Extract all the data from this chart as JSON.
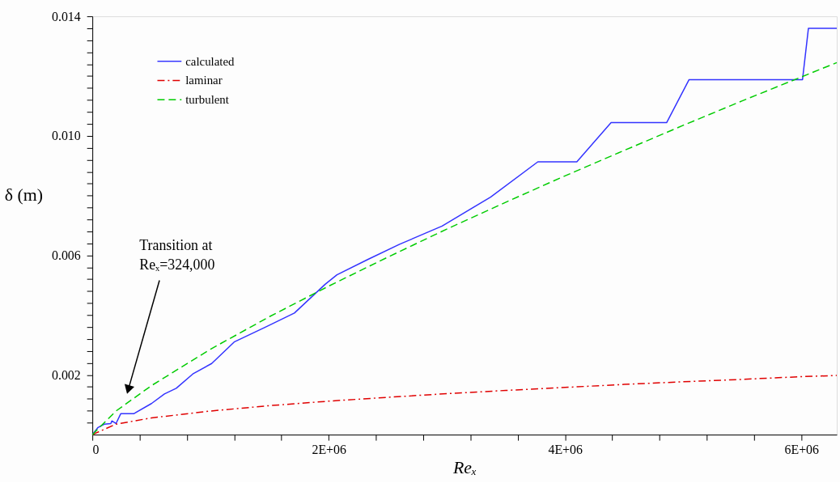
{
  "chart_data": {
    "type": "line",
    "xlabel": "Reₓ",
    "ylabel": "δ (m)",
    "xlim": [
      0,
      6300000
    ],
    "ylim": [
      0,
      0.014
    ],
    "xticks": [
      0,
      {
        "value": 400000,
        "label": null
      },
      {
        "value": 800000,
        "label": null
      },
      {
        "value": 1200000,
        "label": null
      },
      {
        "value": 1600000,
        "label": null
      },
      {
        "value": 2000000,
        "label": "2E+06"
      },
      {
        "value": 2400000,
        "label": null
      },
      {
        "value": 2800000,
        "label": null
      },
      {
        "value": 3200000,
        "label": null
      },
      {
        "value": 3600000,
        "label": null
      },
      {
        "value": 4000000,
        "label": "4E+06"
      },
      {
        "value": 4400000,
        "label": null
      },
      {
        "value": 4800000,
        "label": null
      },
      {
        "value": 5200000,
        "label": null
      },
      {
        "value": 5600000,
        "label": null
      },
      {
        "value": 6000000,
        "label": "6E+06"
      }
    ],
    "yticks": [
      {
        "value": 0.0004,
        "label": null
      },
      {
        "value": 0.0008,
        "label": null
      },
      {
        "value": 0.0012,
        "label": null
      },
      {
        "value": 0.0016,
        "label": null
      },
      0.002,
      {
        "value": 0.0024,
        "label": null
      },
      {
        "value": 0.0028,
        "label": null
      },
      {
        "value": 0.0032,
        "label": null
      },
      {
        "value": 0.0036,
        "label": null
      },
      {
        "value": 0.004,
        "label": null
      },
      {
        "value": 0.0044,
        "label": null
      },
      {
        "value": 0.0048,
        "label": null
      },
      {
        "value": 0.0052,
        "label": null
      },
      {
        "value": 0.0056,
        "label": null
      },
      0.006,
      {
        "value": 0.0064,
        "label": null
      },
      {
        "value": 0.0068,
        "label": null
      },
      {
        "value": 0.0072,
        "label": null
      },
      {
        "value": 0.0076,
        "label": null
      },
      {
        "value": 0.008,
        "label": null
      },
      {
        "value": 0.0084,
        "label": null
      },
      {
        "value": 0.0088,
        "label": null
      },
      {
        "value": 0.0092,
        "label": null
      },
      {
        "value": 0.0096,
        "label": null
      },
      {
        "value": 0.01,
        "label": "0.010"
      },
      {
        "value": 0.0104,
        "label": null
      },
      {
        "value": 0.0108,
        "label": null
      },
      {
        "value": 0.0112,
        "label": null
      },
      {
        "value": 0.0116,
        "label": null
      },
      {
        "value": 0.012,
        "label": null
      },
      {
        "value": 0.0124,
        "label": null
      },
      {
        "value": 0.0128,
        "label": null
      },
      {
        "value": 0.0132,
        "label": null
      },
      {
        "value": 0.0136,
        "label": null
      },
      0.014
    ],
    "grid": false,
    "legend": "top left",
    "marker": "none",
    "series": [
      {
        "name": "calculated",
        "color": "#3333ff",
        "line_style": "solid",
        "x": [
          0,
          48000,
          100000,
          156000,
          165000,
          200000,
          240000,
          350000,
          500000,
          610000,
          710000,
          850000,
          1010000,
          1200000,
          1460000,
          1710000,
          1970000,
          2070000,
          2330000,
          2600000,
          2960000,
          3370000,
          3770000,
          4100000,
          4390000,
          4860000,
          5050000,
          6010000,
          6060000,
          6300000
        ],
        "values": [
          0,
          0.00024,
          0.00035,
          0.00037,
          0.00046,
          0.00037,
          0.0007,
          0.0007,
          0.00104,
          0.00136,
          0.00155,
          0.00203,
          0.00238,
          0.0031,
          0.00359,
          0.00407,
          0.00503,
          0.00535,
          0.00586,
          0.00637,
          0.00698,
          0.00795,
          0.00913,
          0.00913,
          0.01044,
          0.01044,
          0.01188,
          0.01188,
          0.0136,
          0.0136
        ]
      },
      {
        "name": "laminar",
        "color": "#e00000",
        "line_style": "dashdot",
        "x": [
          0,
          200000,
          500000,
          1000000,
          1500000,
          2000000,
          2500000,
          3000000,
          3500000,
          4000000,
          4500000,
          5000000,
          5500000,
          6000000,
          6300000
        ],
        "values": [
          0,
          0.00035,
          0.00056,
          0.00079,
          0.00097,
          0.00112,
          0.00125,
          0.00137,
          0.00148,
          0.00158,
          0.00168,
          0.00177,
          0.00185,
          0.00194,
          0.00198
        ]
      },
      {
        "name": "turbulent",
        "color": "#00cc00",
        "line_style": "dashed",
        "x": [
          0,
          200000,
          500000,
          1000000,
          1500000,
          2000000,
          2500000,
          3000000,
          3500000,
          4000000,
          4500000,
          5000000,
          5500000,
          6000000,
          6300000
        ],
        "values": [
          0,
          0.00079,
          0.00164,
          0.00286,
          0.00395,
          0.00497,
          0.00594,
          0.00688,
          0.00778,
          0.00866,
          0.00951,
          0.01035,
          0.01117,
          0.01197,
          0.01245
        ]
      }
    ],
    "annotations": [
      "Transition at\nReₓ=324,000"
    ]
  }
}
